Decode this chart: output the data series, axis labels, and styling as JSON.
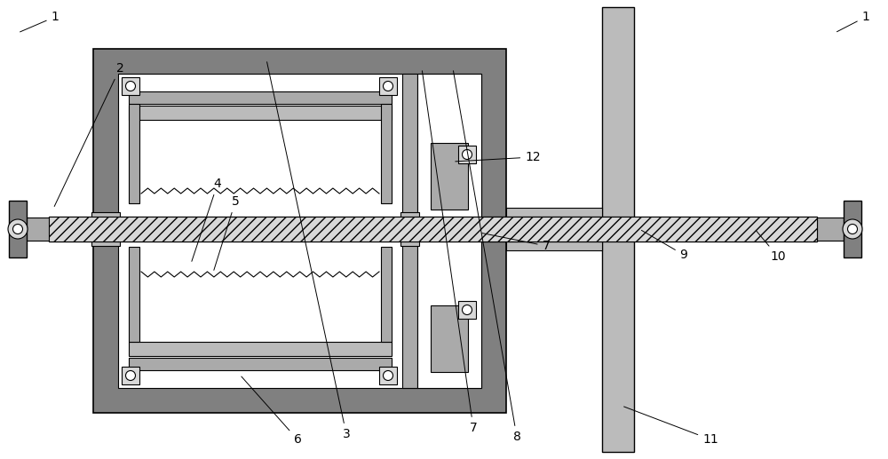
{
  "bg_color": "#ffffff",
  "gray_dark": "#808080",
  "gray_mid": "#aaaaaa",
  "gray_light": "#bbbbbb",
  "gray_vlight": "#d8d8d8",
  "white": "#ffffff",
  "black": "#000000",
  "figsize": [
    10.0,
    5.17
  ],
  "dpi": 100
}
